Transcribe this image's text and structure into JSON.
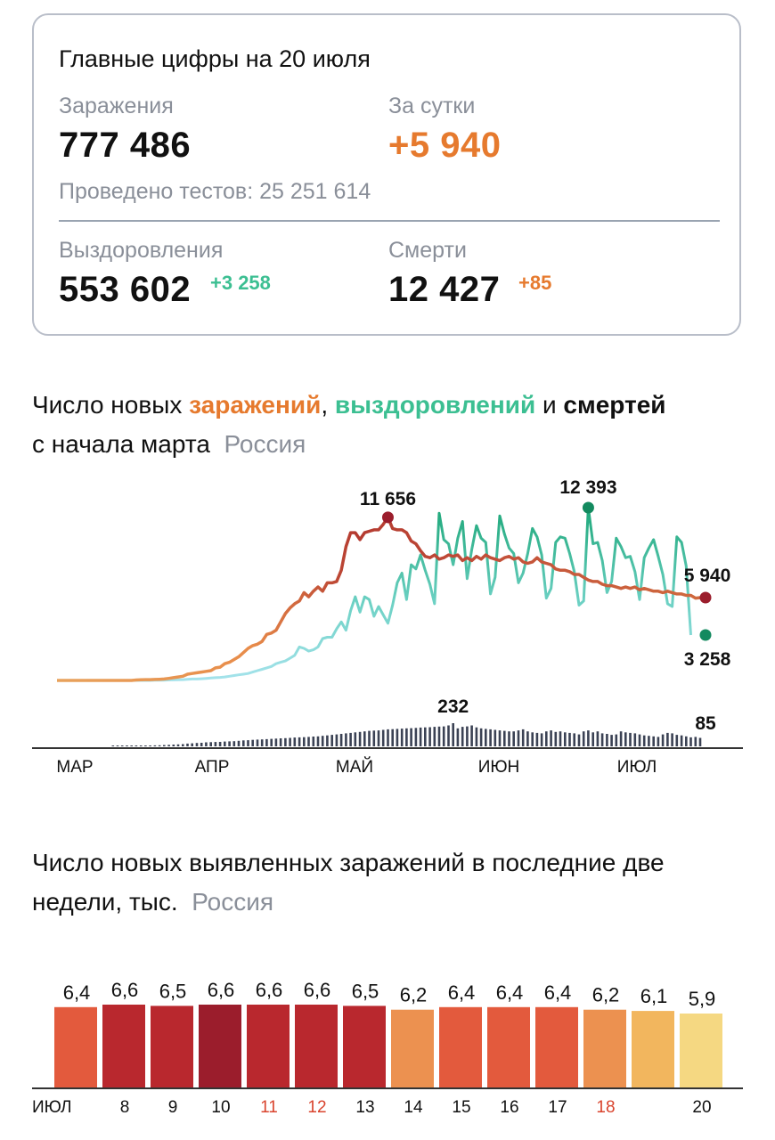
{
  "summary": {
    "title": "Главные цифры на 20 июля",
    "infections_label": "Заражения",
    "infections_value": "777 486",
    "daily_label": "За сутки",
    "daily_value": "+5 940",
    "tests_text": "Проведено тестов: 25 251 614",
    "recoveries_label": "Выздоровления",
    "recoveries_value": "553 602",
    "recoveries_delta": "+3 258",
    "deaths_label": "Смерти",
    "deaths_value": "12 427",
    "deaths_delta": "+85"
  },
  "chart1_heading": {
    "part1": "Число новых ",
    "infections_word": "заражений",
    "comma": ", ",
    "recoveries_word": "выздоровлений",
    "and_word": " и ",
    "deaths_word": "смертей",
    "line2": "с начала марта",
    "region": "Россия"
  },
  "chart2_heading": {
    "line1": "Число новых выявленных заражений в последние две",
    "line2": "недели, тыс.",
    "region": "Россия"
  },
  "colors": {
    "infections": "#c8553a",
    "recoveries": "#2fb88a",
    "deaths": "#3b4254",
    "accent_orange": "#e67a2e",
    "weekend_red": "#d9442e"
  },
  "chart_data": [
    {
      "type": "line",
      "x_labels": [
        "МАР",
        "АПР",
        "МАЙ",
        "ИЮН",
        "ИЮЛ"
      ],
      "series": [
        {
          "name": "заражений",
          "start": "1 марта",
          "values": [
            0,
            0,
            0,
            0,
            0,
            0,
            0,
            0,
            0,
            0,
            0,
            0,
            0,
            0,
            0,
            0,
            0,
            30,
            50,
            60,
            60,
            70,
            80,
            100,
            150,
            200,
            250,
            300,
            450,
            500,
            550,
            600,
            650,
            700,
            900,
            950,
            1200,
            1300,
            1500,
            1700,
            2000,
            2300,
            2500,
            2600,
            2800,
            3300,
            3400,
            3600,
            4200,
            4800,
            5200,
            5500,
            5700,
            6300,
            6000,
            6400,
            6700,
            6400,
            7000,
            7000,
            7100,
            7900,
            9600,
            10600,
            10600,
            10100,
            10600,
            10700,
            10800,
            10800,
            11200,
            11700,
            10900,
            10800,
            10800,
            10600,
            10000,
            9800,
            9300,
            8900,
            8800,
            9000,
            8700,
            8800,
            9000,
            8900,
            9000,
            8600,
            8800,
            8600,
            8900,
            8700,
            9000,
            8800,
            8700,
            8600,
            8800,
            8900,
            8700,
            8800,
            8500,
            8400,
            8500,
            8800,
            8500,
            8400,
            8300,
            8000,
            7900,
            7900,
            7800,
            7600,
            7600,
            7400,
            7200,
            7100,
            7100,
            6900,
            6800,
            6800,
            6700,
            6600,
            6700,
            6600,
            6700,
            6500,
            6600,
            6500,
            6400,
            6400,
            6300,
            6400,
            6300,
            6200,
            6200,
            6100,
            6100,
            5900,
            5940
          ]
        },
        {
          "name": "выздоровлений",
          "start": "1 марта",
          "values": [
            0,
            0,
            0,
            0,
            0,
            0,
            0,
            0,
            0,
            0,
            0,
            0,
            0,
            0,
            0,
            0,
            0,
            0,
            0,
            0,
            0,
            10,
            20,
            20,
            30,
            40,
            50,
            60,
            80,
            100,
            100,
            120,
            150,
            180,
            200,
            220,
            250,
            300,
            350,
            400,
            450,
            500,
            600,
            700,
            800,
            900,
            1000,
            1200,
            1300,
            1400,
            1600,
            1800,
            2400,
            2300,
            2100,
            2200,
            2400,
            3000,
            3100,
            3100,
            3700,
            4200,
            3600,
            5000,
            6000,
            4900,
            6000,
            5800,
            4600,
            5300,
            4700,
            4100,
            5400,
            7000,
            7700,
            5800,
            8300,
            8000,
            9000,
            7900,
            6900,
            5500,
            12000,
            10100,
            9800,
            8300,
            10200,
            11400,
            7300,
            9400,
            11100,
            10200,
            9900,
            6200,
            7400,
            11800,
            10500,
            9500,
            9100,
            7000,
            7700,
            9100,
            10900,
            10300,
            9000,
            5900,
            6600,
            9900,
            10300,
            10200,
            9100,
            7800,
            5400,
            5700,
            12393,
            9800,
            9900,
            8600,
            6300,
            7100,
            10200,
            9600,
            8800,
            8900,
            7800,
            5800,
            8800,
            9500,
            10100,
            8900,
            7600,
            5500,
            5300,
            10300,
            9900,
            8200,
            3258
          ]
        },
        {
          "name": "смертей",
          "values": [
            2,
            2,
            3,
            4,
            5,
            5,
            6,
            8,
            9,
            10,
            11,
            13,
            15,
            18,
            20,
            22,
            28,
            30,
            34,
            36,
            40,
            42,
            44,
            45,
            48,
            50,
            52,
            55,
            60,
            62,
            65,
            68,
            70,
            72,
            75,
            78,
            80,
            82,
            85,
            88,
            90,
            92,
            95,
            98,
            100,
            105,
            110,
            115,
            120,
            125,
            130,
            135,
            140,
            145,
            150,
            155,
            158,
            160,
            165,
            170,
            172,
            175,
            178,
            180,
            182,
            185,
            188,
            190,
            192,
            195,
            198,
            200,
            210,
            232,
            180,
            195,
            200,
            210,
            190,
            180,
            175,
            170,
            165,
            160,
            155,
            150,
            150,
            160,
            170,
            150,
            140,
            135,
            130,
            150,
            160,
            145,
            150,
            140,
            135,
            130,
            120,
            150,
            160,
            140,
            150,
            130,
            125,
            115,
            120,
            150,
            140,
            135,
            130,
            120,
            110,
            105,
            100,
            95,
            120,
            135,
            130,
            115,
            110,
            100,
            90,
            95,
            85
          ]
        }
      ],
      "point_labels": [
        {
          "series": "заражений",
          "text": "11 656"
        },
        {
          "series": "выздоровлений",
          "text": "12 393"
        },
        {
          "series": "заражений",
          "text": "5 940"
        },
        {
          "series": "выздоровлений",
          "text": "3 258"
        },
        {
          "series": "смертей",
          "text": "232"
        },
        {
          "series": "смертей",
          "text": "85"
        }
      ],
      "grid": false
    },
    {
      "type": "bar",
      "title": "Число новых выявленных заражений в последние две недели, тыс.",
      "categories": [
        "ИЮЛ",
        "8",
        "9",
        "10",
        "11",
        "12",
        "13",
        "14",
        "15",
        "16",
        "17",
        "18",
        "",
        "20"
      ],
      "values": [
        6.4,
        6.6,
        6.5,
        6.6,
        6.6,
        6.6,
        6.5,
        6.2,
        6.4,
        6.4,
        6.4,
        6.2,
        6.1,
        5.9
      ],
      "value_labels": [
        "6,4",
        "6,6",
        "6,5",
        "6,6",
        "6,6",
        "6,6",
        "6,5",
        "6,2",
        "6,4",
        "6,4",
        "6,4",
        "6,2",
        "6,1",
        "5,9"
      ],
      "bar_colors": [
        "#e35a3d",
        "#b9282e",
        "#b9282e",
        "#9b1d2c",
        "#b9282e",
        "#b9282e",
        "#b9282e",
        "#ec9150",
        "#e35a3d",
        "#e35a3d",
        "#e35a3d",
        "#ec9150",
        "#f2b65e",
        "#f5d882"
      ],
      "highlighted_categories": [
        "11",
        "12",
        "18"
      ]
    }
  ]
}
